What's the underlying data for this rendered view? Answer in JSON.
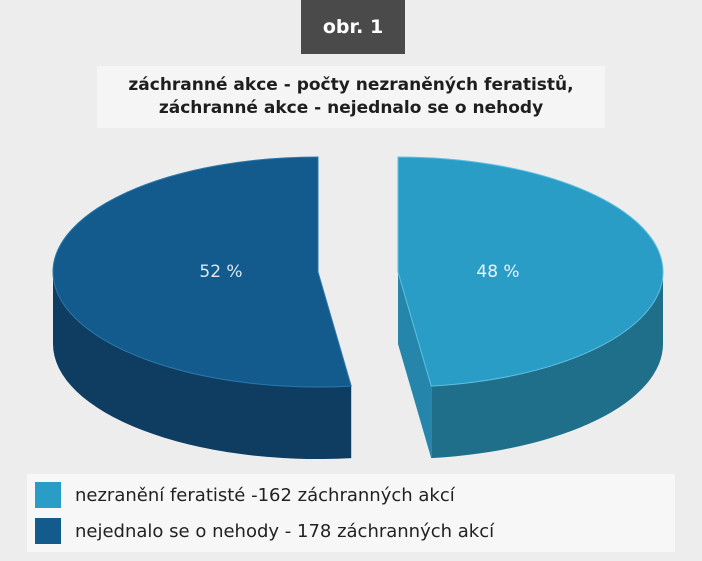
{
  "badge": "obr. 1",
  "chart_data": {
    "type": "pie",
    "title_lines": [
      "záchranné akce - počty nezraněných feratistů,",
      "záchranné akce - nejednalo se o nehody"
    ],
    "slices": [
      {
        "label": "nezranění feratisté -162 záchranných akcí",
        "value": 48,
        "display": "48 %",
        "color": "#2a9dc6",
        "side_color": "#1f6f8b"
      },
      {
        "label": "nejednalo se o nehody - 178 záchranných akcí",
        "value": 52,
        "display": "52 %",
        "color": "#145b8d",
        "side_color": "#0e3d61"
      }
    ],
    "legend_placement": "bottom"
  }
}
